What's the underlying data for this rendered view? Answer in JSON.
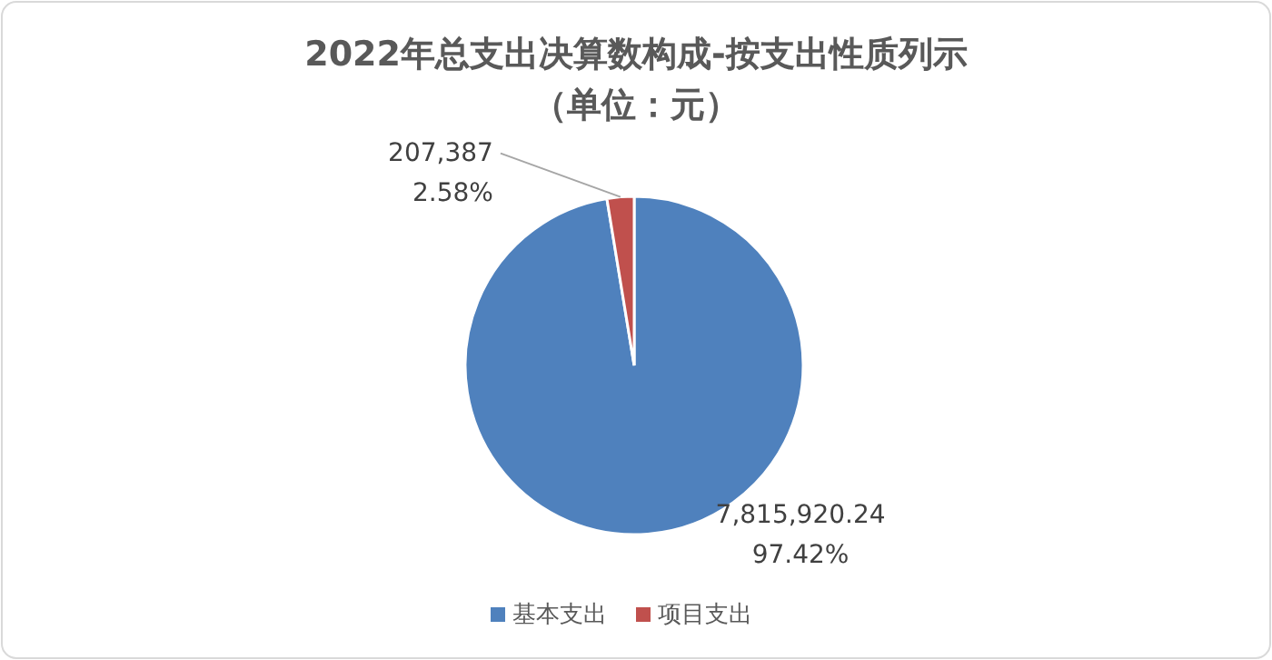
{
  "chart_data": {
    "type": "pie",
    "title": "2022年总支出决算数构成-按支出性质列示",
    "subtitle": "（单位：元）",
    "categories": [
      "基本支出",
      "项目支出"
    ],
    "values": [
      7815920.24,
      207387
    ],
    "colors": [
      "#4f81bd",
      "#c0504d"
    ],
    "value_labels": [
      "7,815,920.24\n97.42%",
      "207,387\n2.58%"
    ],
    "legend": "bottom"
  }
}
